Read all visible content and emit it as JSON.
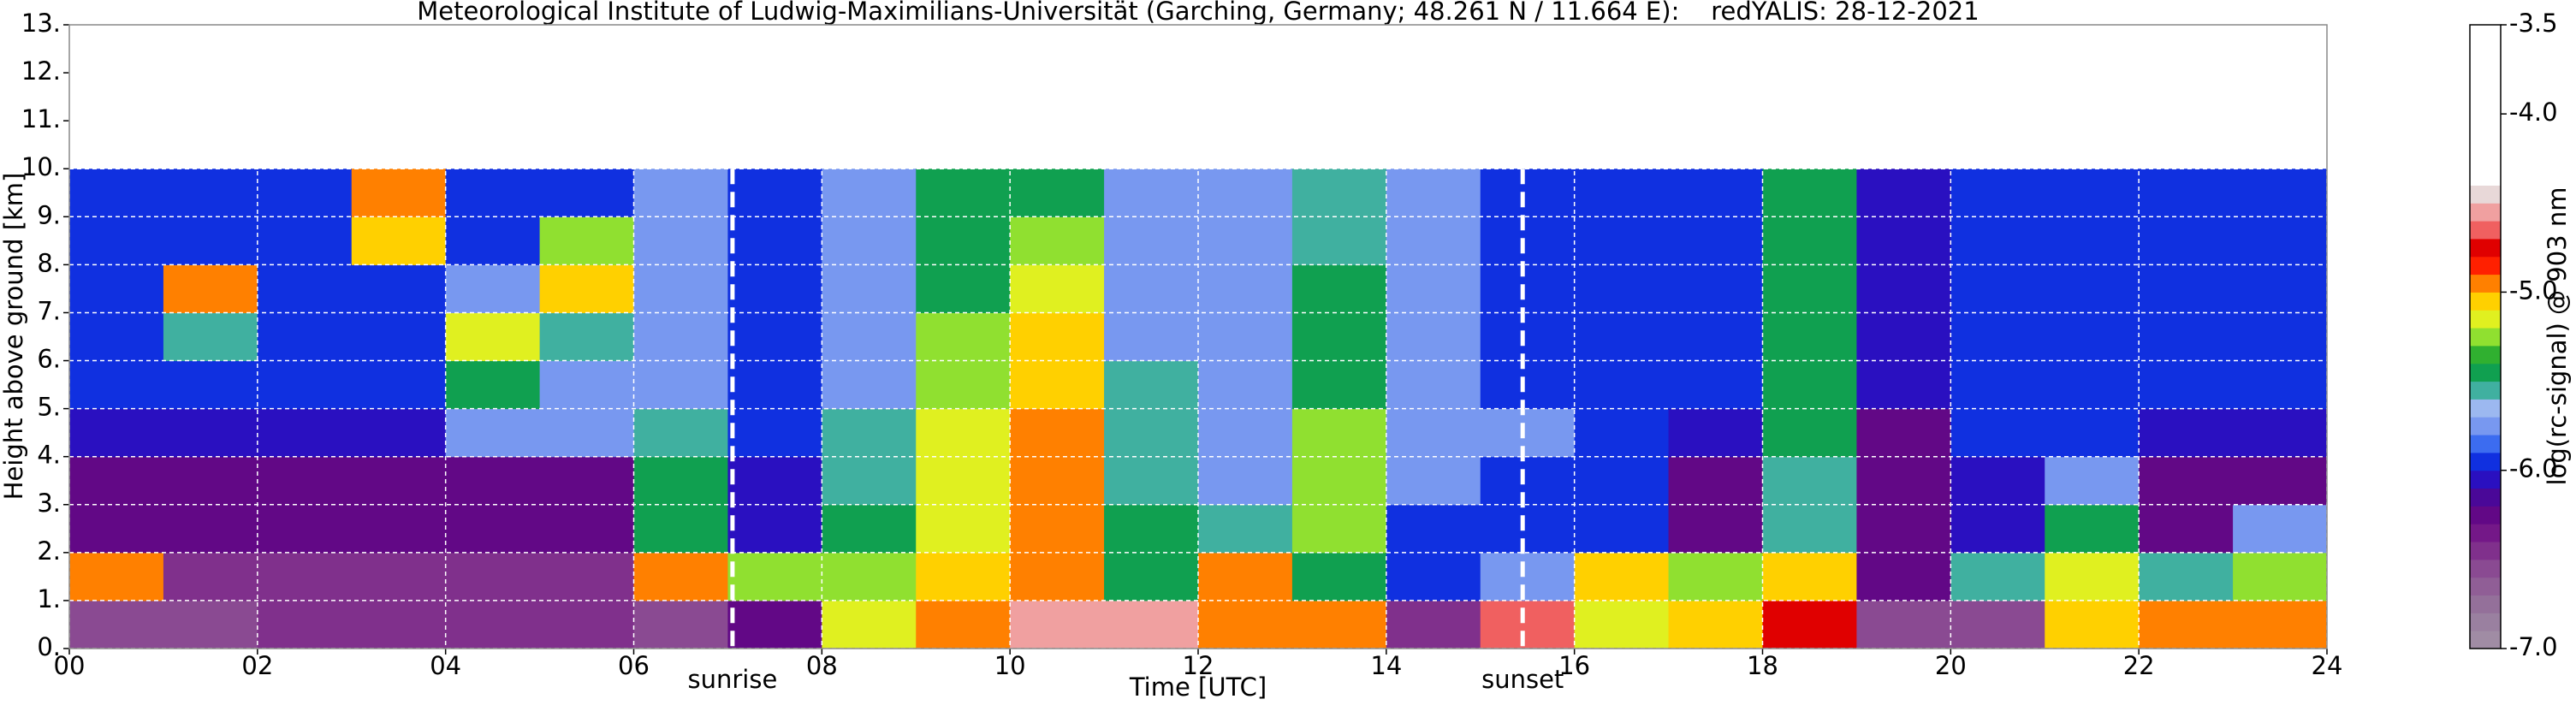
{
  "chart_data": {
    "type": "heatmap",
    "title": "Meteorological Institute of Ludwig-Maximilians-Universität (Garching, Germany; 48.261 N / 11.664 E):    redYALIS: 28-12-2021",
    "x_label": "Time [UTC]",
    "y_label": "Height above ground [km]",
    "colorbar_label": "log(rc-signal) @ 903 nm",
    "xlim": [
      0,
      24
    ],
    "ylim": [
      0,
      13
    ],
    "xticks": [
      {
        "value": 0,
        "label": "00"
      },
      {
        "value": 2,
        "label": "02"
      },
      {
        "value": 4,
        "label": "04"
      },
      {
        "value": 6,
        "label": "06"
      },
      {
        "value": 8,
        "label": "08"
      },
      {
        "value": 10,
        "label": "10"
      },
      {
        "value": 12,
        "label": "12"
      },
      {
        "value": 14,
        "label": "14"
      },
      {
        "value": 16,
        "label": "16"
      },
      {
        "value": 18,
        "label": "18"
      },
      {
        "value": 20,
        "label": "20"
      },
      {
        "value": 22,
        "label": "22"
      },
      {
        "value": 24,
        "label": "24"
      }
    ],
    "yticks": [
      {
        "value": 0,
        "label": "0."
      },
      {
        "value": 1,
        "label": "1."
      },
      {
        "value": 2,
        "label": "2."
      },
      {
        "value": 3,
        "label": "3."
      },
      {
        "value": 4,
        "label": "4."
      },
      {
        "value": 5,
        "label": "5."
      },
      {
        "value": 6,
        "label": "6."
      },
      {
        "value": 7,
        "label": "7."
      },
      {
        "value": 8,
        "label": "8."
      },
      {
        "value": 9,
        "label": "9."
      },
      {
        "value": 10,
        "label": "10."
      },
      {
        "value": 11,
        "label": "11."
      },
      {
        "value": 12,
        "label": "12."
      },
      {
        "value": 13,
        "label": "13."
      }
    ],
    "grid": true,
    "x_bins": [
      0,
      1,
      2,
      3,
      4,
      5,
      6,
      7,
      8,
      9,
      10,
      11,
      12,
      13,
      14,
      15,
      16,
      17,
      18,
      19,
      20,
      21,
      22,
      23,
      24
    ],
    "y_bins": [
      0,
      1,
      2,
      3,
      4,
      5,
      6,
      7,
      8,
      9,
      10
    ],
    "values": [
      [
        -6.6,
        -6.6,
        -6.5,
        -6.5,
        -6.5,
        -6.5,
        -6.6,
        -6.2,
        -5.2,
        -4.9,
        -4.6,
        -4.6,
        -5.0,
        -4.9,
        -6.5,
        -4.7,
        -5.2,
        -5.1,
        -4.8,
        -6.6,
        -6.6,
        -5.1,
        -4.9,
        -4.9
      ],
      [
        -5.0,
        -6.4,
        -6.4,
        -6.5,
        -6.5,
        -6.4,
        -5.0,
        -5.3,
        -5.3,
        -5.1,
        -5.0,
        -5.4,
        -5.0,
        -5.5,
        -5.9,
        -5.8,
        -5.1,
        -5.3,
        -5.1,
        -6.2,
        -5.6,
        -5.2,
        -5.6,
        -5.3
      ],
      [
        -6.3,
        -6.3,
        -6.3,
        -6.3,
        -6.3,
        -6.3,
        -5.4,
        -6.1,
        -5.5,
        -5.2,
        -4.9,
        -5.5,
        -5.6,
        -5.3,
        -5.9,
        -5.9,
        -5.9,
        -6.2,
        -5.6,
        -6.3,
        -6.1,
        -5.5,
        -6.2,
        -5.8
      ],
      [
        -6.2,
        -6.2,
        -6.2,
        -6.2,
        -6.2,
        -6.2,
        -5.5,
        -6.1,
        -5.6,
        -5.2,
        -4.9,
        -5.6,
        -5.7,
        -5.3,
        -5.8,
        -5.9,
        -5.9,
        -6.2,
        -5.6,
        -6.3,
        -6.1,
        -5.8,
        -6.2,
        -6.2
      ],
      [
        -6.1,
        -6.1,
        -6.1,
        -6.1,
        -5.8,
        -5.8,
        -5.6,
        -6.0,
        -5.6,
        -5.2,
        -5.0,
        -5.6,
        -5.7,
        -5.3,
        -5.8,
        -5.8,
        -5.9,
        -6.1,
        -5.5,
        -6.2,
        -6.0,
        -6.0,
        -6.1,
        -6.1
      ],
      [
        -6.0,
        -6.0,
        -6.0,
        -6.0,
        -5.5,
        -5.7,
        -5.8,
        -5.9,
        -5.7,
        -5.3,
        -5.1,
        -5.6,
        -5.8,
        -5.4,
        -5.8,
        -5.9,
        -5.9,
        -6.0,
        -5.5,
        -6.1,
        -6.0,
        -6.0,
        -6.0,
        -6.0
      ],
      [
        -6.0,
        -5.6,
        -6.0,
        -6.0,
        -5.2,
        -5.6,
        -5.8,
        -5.9,
        -5.7,
        -5.3,
        -5.1,
        -5.7,
        -5.8,
        -5.5,
        -5.8,
        -5.9,
        -5.9,
        -6.0,
        -5.5,
        -6.1,
        -6.0,
        -6.0,
        -6.0,
        -6.0
      ],
      [
        -6.0,
        -5.0,
        -6.0,
        -6.0,
        -5.7,
        -5.1,
        -5.8,
        -5.9,
        -5.7,
        -5.4,
        -5.2,
        -5.7,
        -5.8,
        -5.5,
        -5.8,
        -5.9,
        -5.9,
        -6.0,
        -5.5,
        -6.1,
        -6.0,
        -6.0,
        -6.0,
        -6.0
      ],
      [
        -6.0,
        -6.0,
        -6.0,
        -5.1,
        -6.0,
        -5.3,
        -5.8,
        -5.9,
        -5.7,
        -5.4,
        -5.3,
        -5.7,
        -5.8,
        -5.6,
        -5.8,
        -5.9,
        -5.9,
        -6.0,
        -5.5,
        -6.1,
        -6.0,
        -6.0,
        -6.0,
        -6.0
      ],
      [
        -6.0,
        -6.0,
        -6.0,
        -5.0,
        -6.0,
        -6.0,
        -5.8,
        -5.9,
        -5.7,
        -5.5,
        -5.4,
        -5.7,
        -5.8,
        -5.6,
        -5.8,
        -5.9,
        -5.9,
        -6.0,
        -5.5,
        -6.1,
        -6.0,
        -6.0,
        -6.0,
        -6.0
      ]
    ],
    "clim": [
      -7,
      -3.5
    ],
    "cticks": [
      {
        "value": -7,
        "label": "-7.0"
      },
      {
        "value": -6,
        "label": "-6.0"
      },
      {
        "value": -5,
        "label": "-5.0"
      },
      {
        "value": -4,
        "label": "-4.0"
      },
      -3.5
    ],
    "colormap": [
      "#a08ca4",
      "#9a80a0",
      "#94709a",
      "#905e96",
      "#8a4a92",
      "#80308c",
      "#741888",
      "#620886",
      "#4a0898",
      "#2a10c0",
      "#1030e0",
      "#3c6cf0",
      "#7898f0",
      "#9cb8f0",
      "#40b0a0",
      "#10a050",
      "#30b030",
      "#90e030",
      "#e0f020",
      "#ffd000",
      "#ff8000",
      "#ff2000",
      "#e00000",
      "#f06060",
      "#f0a0a0",
      "#e8d8d8",
      "#ffffff",
      "#ffffff",
      "#ffffff",
      "#ffffff",
      "#ffffff",
      "#ffffff",
      "#ffffff",
      "#ffffff",
      "#ffffff"
    ],
    "annotations": [
      {
        "text": "sunrise",
        "x": 7.05
      },
      {
        "text": "sunset",
        "x": 15.45
      }
    ]
  }
}
